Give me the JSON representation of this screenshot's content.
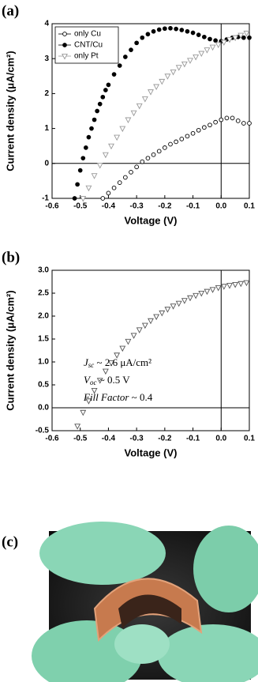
{
  "chart_data": [
    {
      "type": "scatter",
      "label": "(a)",
      "xlabel": "Voltage (V)",
      "ylabel": "Current density (μA/cm²)",
      "xlim": [
        -0.6,
        0.1
      ],
      "xticks": [
        -0.6,
        -0.5,
        -0.4,
        -0.3,
        -0.2,
        -0.1,
        {
          "value": 0,
          "label": "0.0"
        },
        0.1
      ],
      "ylim": [
        -1,
        4
      ],
      "yticks": [
        -1,
        0,
        1,
        2,
        3,
        4
      ],
      "zero_lines": true,
      "legend": "top-left",
      "series": [
        {
          "name": "only Cu",
          "color": "#000000",
          "marker": "open-circle",
          "x": [
            -0.42,
            -0.4,
            -0.38,
            -0.36,
            -0.34,
            -0.32,
            -0.3,
            -0.28,
            -0.26,
            -0.24,
            -0.22,
            -0.2,
            -0.18,
            -0.16,
            -0.14,
            -0.12,
            -0.1,
            -0.08,
            -0.06,
            -0.04,
            -0.02,
            0,
            0.02,
            0.04,
            0.06,
            0.08,
            0.1
          ],
          "values": [
            -1,
            -0.85,
            -0.7,
            -0.55,
            -0.4,
            -0.25,
            -0.1,
            0.05,
            0.15,
            0.25,
            0.35,
            0.45,
            0.55,
            0.62,
            0.7,
            0.78,
            0.86,
            0.95,
            1.03,
            1.1,
            1.18,
            1.25,
            1.3,
            1.3,
            1.22,
            1.15,
            1.15
          ]
        },
        {
          "name": "CNT/Cu",
          "color": "#000000",
          "marker": "filled-circle",
          "x": [
            -0.52,
            -0.51,
            -0.5,
            -0.49,
            -0.48,
            -0.47,
            -0.46,
            -0.45,
            -0.44,
            -0.43,
            -0.42,
            -0.41,
            -0.4,
            -0.38,
            -0.36,
            -0.34,
            -0.32,
            -0.3,
            -0.28,
            -0.26,
            -0.24,
            -0.22,
            -0.2,
            -0.18,
            -0.16,
            -0.14,
            -0.12,
            -0.1,
            -0.08,
            -0.06,
            -0.04,
            -0.02,
            0,
            0.02,
            0.04,
            0.06,
            0.08,
            0.1
          ],
          "values": [
            -1,
            -0.6,
            -0.2,
            0.15,
            0.45,
            0.75,
            1.0,
            1.25,
            1.5,
            1.7,
            1.9,
            2.1,
            2.25,
            2.55,
            2.8,
            3.05,
            3.25,
            3.45,
            3.6,
            3.7,
            3.78,
            3.83,
            3.86,
            3.87,
            3.85,
            3.82,
            3.78,
            3.74,
            3.68,
            3.62,
            3.56,
            3.52,
            3.5,
            3.55,
            3.6,
            3.62,
            3.6,
            3.6
          ]
        },
        {
          "name": "only Pt",
          "color": "#999999",
          "marker": "open-triangle-down",
          "x": [
            -0.49,
            -0.47,
            -0.45,
            -0.43,
            -0.41,
            -0.39,
            -0.37,
            -0.35,
            -0.33,
            -0.31,
            -0.29,
            -0.27,
            -0.25,
            -0.23,
            -0.21,
            -0.19,
            -0.17,
            -0.15,
            -0.13,
            -0.11,
            -0.09,
            -0.07,
            -0.05,
            -0.03,
            -0.01,
            0.01,
            0.03,
            0.05,
            0.07,
            0.09
          ],
          "values": [
            -1,
            -0.7,
            -0.35,
            -0.05,
            0.25,
            0.5,
            0.75,
            1.0,
            1.25,
            1.45,
            1.65,
            1.85,
            2.05,
            2.2,
            2.35,
            2.5,
            2.62,
            2.75,
            2.85,
            2.95,
            3.05,
            3.15,
            3.25,
            3.33,
            3.4,
            3.47,
            3.55,
            3.6,
            3.67,
            3.73
          ]
        }
      ]
    },
    {
      "type": "scatter",
      "label": "(b)",
      "xlabel": "Voltage (V)",
      "ylabel": "Current density (μA/cm²)",
      "xlim": [
        -0.6,
        0.1
      ],
      "xticks": [
        -0.6,
        -0.5,
        -0.4,
        -0.3,
        -0.2,
        -0.1,
        {
          "value": 0,
          "label": "0.0"
        },
        0.1
      ],
      "ylim": [
        -0.5,
        3.0
      ],
      "yticks": [
        -0.5,
        {
          "value": 0,
          "label": "0.0"
        },
        0.5,
        {
          "value": 1,
          "label": "1.0"
        },
        1.5,
        {
          "value": 2,
          "label": "2.0"
        },
        2.5,
        {
          "value": 3,
          "label": "3.0"
        }
      ],
      "zero_lines": true,
      "series": [
        {
          "color": "#555555",
          "marker": "open-triangle-down",
          "x": [
            -0.51,
            -0.49,
            -0.47,
            -0.45,
            -0.43,
            -0.41,
            -0.39,
            -0.37,
            -0.35,
            -0.33,
            -0.31,
            -0.29,
            -0.27,
            -0.25,
            -0.23,
            -0.21,
            -0.19,
            -0.17,
            -0.15,
            -0.13,
            -0.11,
            -0.09,
            -0.07,
            -0.05,
            -0.03,
            -0.01,
            0.01,
            0.03,
            0.05,
            0.07,
            0.09
          ],
          "values": [
            -0.4,
            -0.1,
            0.15,
            0.38,
            0.6,
            0.8,
            0.98,
            1.15,
            1.3,
            1.45,
            1.58,
            1.7,
            1.8,
            1.9,
            1.99,
            2.07,
            2.15,
            2.22,
            2.28,
            2.34,
            2.4,
            2.45,
            2.5,
            2.54,
            2.58,
            2.62,
            2.65,
            2.67,
            2.69,
            2.71,
            2.73
          ]
        }
      ],
      "annotations": [
        {
          "symbol": "J",
          "subscript": "sc",
          "text": " ~ 2.6 μA/cm²"
        },
        {
          "symbol": "V",
          "subscript": "oc",
          "text": " ~ 0.5 V"
        },
        {
          "symbol": "Fill Factor",
          "text": " ~ 0.4"
        }
      ]
    }
  ],
  "photo": {
    "label": "(c)"
  }
}
